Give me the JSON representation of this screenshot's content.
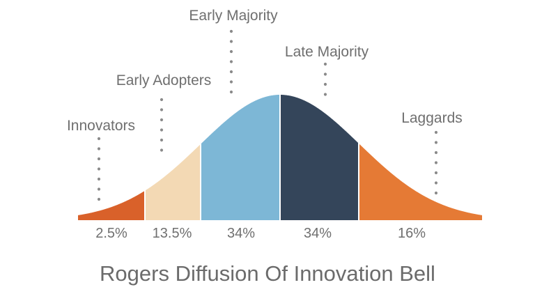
{
  "title": "Rogers Diffusion Of Innovation Bell",
  "segments": [
    {
      "name": "Innovators",
      "percent": "2.5%",
      "color": "#d9612a"
    },
    {
      "name": "Early Adopters",
      "percent": "13.5%",
      "color": "#f3d9b4"
    },
    {
      "name": "Early Majority",
      "percent": "34%",
      "color": "#7db7d6"
    },
    {
      "name": "Late Majority",
      "percent": "34%",
      "color": "#34455a"
    },
    {
      "name": "Laggards",
      "percent": "16%",
      "color": "#e57a35"
    }
  ],
  "label_color": "#6f6f6f",
  "dot_color": "#8a8a8a"
}
